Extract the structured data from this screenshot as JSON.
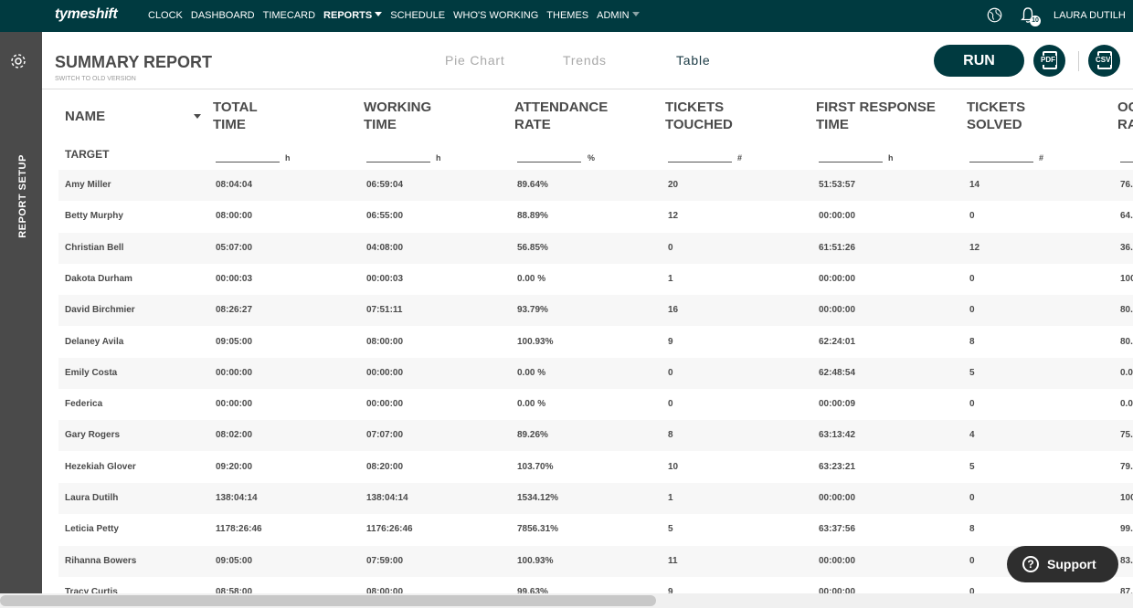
{
  "nav": {
    "logo": "tymeshift",
    "items": [
      {
        "label": "CLOCK",
        "active": false
      },
      {
        "label": "DASHBOARD",
        "active": false
      },
      {
        "label": "TIMECARD",
        "active": false
      },
      {
        "label": "REPORTS",
        "active": true,
        "dropdown": true
      },
      {
        "label": "SCHEDULE",
        "active": false
      },
      {
        "label": "WHO'S WORKING",
        "active": false
      },
      {
        "label": "THEMES",
        "active": false
      },
      {
        "label": "ADMIN",
        "active": false,
        "dropdown": true
      }
    ],
    "notification_count": "10",
    "user_name": "LAURA DUTILH"
  },
  "sidebar": {
    "label": "REPORT SETUP"
  },
  "header": {
    "title": "SUMMARY REPORT",
    "switch_link": "SWITCH TO OLD VERSION",
    "tabs": [
      {
        "label": "Pie Chart",
        "active": false
      },
      {
        "label": "Trends",
        "active": false
      },
      {
        "label": "Table",
        "active": true
      }
    ],
    "run_label": "RUN",
    "pdf_label": "PDF",
    "csv_label": "CSV"
  },
  "table": {
    "columns": [
      {
        "label_line1": "NAME",
        "label_line2": ""
      },
      {
        "label_line1": "TOTAL",
        "label_line2": "TIME",
        "unit": "h"
      },
      {
        "label_line1": "WORKING",
        "label_line2": "TIME",
        "unit": "h"
      },
      {
        "label_line1": "ATTENDANCE",
        "label_line2": "RATE",
        "unit": "%"
      },
      {
        "label_line1": "TICKETS",
        "label_line2": "TOUCHED",
        "unit": "#"
      },
      {
        "label_line1": "FIRST RESPONSE",
        "label_line2": "TIME",
        "unit": "h"
      },
      {
        "label_line1": "TICKETS",
        "label_line2": "SOLVED",
        "unit": "#"
      },
      {
        "label_line1": "OC",
        "label_line2": "RA",
        "unit": ""
      }
    ],
    "target_label": "TARGET",
    "rows": [
      [
        "Amy Miller",
        "08:04:04",
        "06:59:04",
        "89.64%",
        "20",
        "51:53:57",
        "14",
        "76."
      ],
      [
        "Betty Murphy",
        "08:00:00",
        "06:55:00",
        "88.89%",
        "12",
        "00:00:00",
        "0",
        "64."
      ],
      [
        "Christian Bell",
        "05:07:00",
        "04:08:00",
        "56.85%",
        "0",
        "61:51:26",
        "12",
        "36."
      ],
      [
        "Dakota Durham",
        "00:00:03",
        "00:00:03",
        "0.00 %",
        "1",
        "00:00:00",
        "0",
        "100"
      ],
      [
        "David Birchmier",
        "08:26:27",
        "07:51:11",
        "93.79%",
        "16",
        "00:00:00",
        "0",
        "80."
      ],
      [
        "Delaney Avila",
        "09:05:00",
        "08:00:00",
        "100.93%",
        "9",
        "62:24:01",
        "8",
        "80."
      ],
      [
        "Emily Costa",
        "00:00:00",
        "00:00:00",
        "0.00 %",
        "0",
        "62:48:54",
        "5",
        "0.0"
      ],
      [
        "Federica",
        "00:00:00",
        "00:00:00",
        "0.00 %",
        "0",
        "00:00:09",
        "0",
        "0.0"
      ],
      [
        "Gary Rogers",
        "08:02:00",
        "07:07:00",
        "89.26%",
        "8",
        "63:13:42",
        "4",
        "75."
      ],
      [
        "Hezekiah Glover",
        "09:20:00",
        "08:20:00",
        "103.70%",
        "10",
        "63:23:21",
        "5",
        "79."
      ],
      [
        "Laura Dutilh",
        "138:04:14",
        "138:04:14",
        "1534.12%",
        "1",
        "00:00:00",
        "0",
        "100"
      ],
      [
        "Leticia Petty",
        "1178:26:46",
        "1176:26:46",
        "7856.31%",
        "5",
        "63:37:56",
        "8",
        "99."
      ],
      [
        "Rihanna Bowers",
        "09:05:00",
        "07:59:00",
        "100.93%",
        "11",
        "00:00:00",
        "0",
        "83."
      ],
      [
        "Tracy Curtis",
        "08:58:00",
        "08:00:00",
        "99.63%",
        "9",
        "00:00:00",
        "0",
        "87."
      ]
    ]
  },
  "support": {
    "label": "Support",
    "icon_glyph": "?"
  }
}
